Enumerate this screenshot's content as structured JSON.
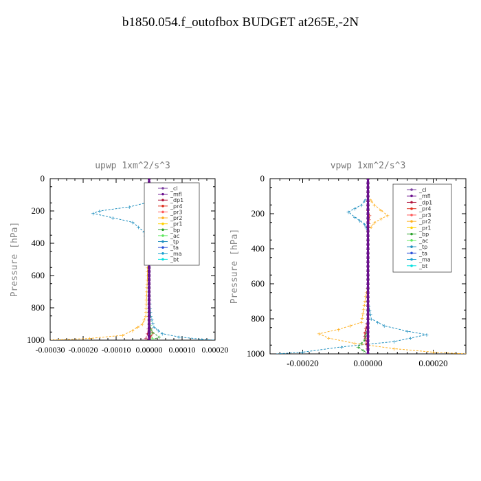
{
  "title": "b1850.054.f_outofbox  BUDGET at265E,-2N",
  "series_colors": {
    "_cl": "#7b3fa0",
    "_mfl": "#6a0f8e",
    "_dp1": "#b0143c",
    "_pr4": "#e0301e",
    "_pr3": "#ff5a5a",
    "_pr2": "#ffb020",
    "_pr1": "#ffd000",
    "_bp": "#2aa02a",
    "_ac": "#5ee85e",
    "_tp": "#1f8fbf",
    "_ta": "#2a4fd8",
    "_ma": "#1a9fd0",
    "_bt": "#00e0e0"
  },
  "chart_data": [
    {
      "type": "line",
      "title": "upwp  1xm^2/s^3",
      "ylabel": "Pressure [hPa]",
      "xlabel": "",
      "ylim": [
        1000,
        0
      ],
      "xlim": [
        -0.0003,
        0.0002
      ],
      "y_ticks": [
        "0",
        "200",
        "400",
        "600",
        "800",
        "1000"
      ],
      "x_ticks": [
        "-0.00030",
        "-0.00020",
        "-0.00010",
        "0.00000",
        "0.00010",
        "0.00020"
      ],
      "legend": [
        "_cl",
        "_mfl",
        "_dp1",
        "_pr4",
        "_pr3",
        "_pr2",
        "_pr1",
        "_bp",
        "_ac",
        "_tp",
        "_ta",
        "_ma",
        "_bt"
      ],
      "legend_position": "top-right",
      "series": [
        {
          "name": "_tp",
          "x": [
            0.0,
            5e-06,
            -1e-05,
            -6e-05,
            -0.00015,
            -0.00017,
            -5e-05,
            -1.5e-05,
            -5e-06,
            0.0,
            0.0,
            5e-06,
            1.5e-05,
            4e-05,
            9e-05,
            0.00016,
            0.0002
          ],
          "y": [
            0,
            100,
            150,
            175,
            200,
            215,
            270,
            330,
            400,
            500,
            700,
            850,
            920,
            960,
            980,
            995,
            1000
          ]
        },
        {
          "name": "_pr2",
          "x": [
            0.0,
            -5e-06,
            5e-06,
            3e-05,
            5e-05,
            4e-05,
            1e-05,
            -5e-06,
            -5e-06,
            -5e-06,
            -1e-05,
            -2e-05,
            -5e-05,
            -8e-05,
            -0.00018,
            -0.0003
          ],
          "y": [
            0,
            100,
            150,
            185,
            210,
            240,
            300,
            350,
            450,
            600,
            850,
            900,
            940,
            970,
            990,
            1000
          ]
        },
        {
          "name": "_pr4",
          "x": [
            0.0,
            0.0,
            5e-06,
            1.2e-05,
            1e-05,
            3e-06,
            0.0,
            0.0,
            0.0,
            1e-05,
            0.0
          ],
          "y": [
            0,
            150,
            190,
            210,
            240,
            300,
            400,
            700,
            900,
            960,
            1000
          ]
        },
        {
          "name": "_dp1",
          "x": [
            0.0,
            0.0,
            0.0,
            -5e-06,
            -1e-05,
            0.0
          ],
          "y": [
            0,
            400,
            900,
            960,
            990,
            1000
          ]
        },
        {
          "name": "_bp",
          "x": [
            0.0,
            0.0,
            0.0,
            1e-05,
            3e-05,
            1e-05
          ],
          "y": [
            0,
            500,
            900,
            950,
            980,
            1000
          ]
        },
        {
          "name": "_ac",
          "x": [
            0.0,
            0.0,
            5e-06,
            1e-05,
            0.0
          ],
          "y": [
            0,
            800,
            960,
            990,
            1000
          ]
        },
        {
          "name": "_cl",
          "x": [
            0.0,
            0.0
          ],
          "y": [
            0,
            1000
          ]
        },
        {
          "name": "_mfl",
          "x": [
            0.0,
            0.0
          ],
          "y": [
            0,
            1000
          ]
        }
      ]
    },
    {
      "type": "line",
      "title": "vpwp  1xm^2/s^3",
      "ylabel": "Pressure [hPa]",
      "xlabel": "",
      "ylim": [
        1000,
        0
      ],
      "xlim": [
        -0.0003,
        0.0003
      ],
      "y_ticks": [
        "0",
        "200",
        "400",
        "600",
        "800",
        "1000"
      ],
      "x_ticks": [
        "-0.00020",
        "0.00000",
        "0.00020"
      ],
      "legend": [
        "_cl",
        "_mfl",
        "_dp1",
        "_pr4",
        "_pr3",
        "_pr2",
        "_pr1",
        "_bp",
        "_ac",
        "_tp",
        "_ta",
        "_ma",
        "_bt"
      ],
      "legend_position": "top-right",
      "series": [
        {
          "name": "_tp",
          "x": [
            0.0,
            0.0,
            -2e-05,
            -6e-05,
            -4e-05,
            -1e-05,
            0.0,
            0.0,
            0.0,
            1e-05,
            5e-05,
            0.00012,
            0.00018,
            8e-05,
            -8e-05,
            -0.0002,
            -0.00028
          ],
          "y": [
            0,
            100,
            150,
            190,
            220,
            260,
            300,
            400,
            700,
            800,
            840,
            870,
            890,
            930,
            960,
            990,
            1000
          ]
        },
        {
          "name": "_pr2",
          "x": [
            0.0,
            0.0,
            2e-05,
            4e-05,
            6e-05,
            2e-05,
            0.0,
            0.0,
            -2e-05,
            -9e-05,
            -0.00015,
            -0.00012,
            -4e-05,
            8e-05,
            0.0002,
            0.0003
          ],
          "y": [
            0,
            100,
            150,
            180,
            210,
            250,
            300,
            600,
            820,
            860,
            885,
            910,
            940,
            970,
            990,
            1000
          ]
        },
        {
          "name": "_pr4",
          "x": [
            0.0,
            0.0,
            5e-06,
            0.0,
            0.0,
            -1e-05,
            -5e-06,
            0.0
          ],
          "y": [
            0,
            180,
            210,
            300,
            800,
            880,
            940,
            1000
          ]
        },
        {
          "name": "_dp1",
          "x": [
            0.0,
            0.0,
            -1e-05,
            0.0,
            0.0
          ],
          "y": [
            0,
            800,
            900,
            970,
            1000
          ]
        },
        {
          "name": "_bp",
          "x": [
            0.0,
            0.0,
            -1e-05,
            -3e-05,
            0.0
          ],
          "y": [
            0,
            850,
            920,
            960,
            1000
          ]
        },
        {
          "name": "_cl",
          "x": [
            0.0,
            0.0
          ],
          "y": [
            0,
            1000
          ]
        },
        {
          "name": "_mfl",
          "x": [
            0.0,
            0.0
          ],
          "y": [
            0,
            1000
          ]
        }
      ]
    }
  ]
}
